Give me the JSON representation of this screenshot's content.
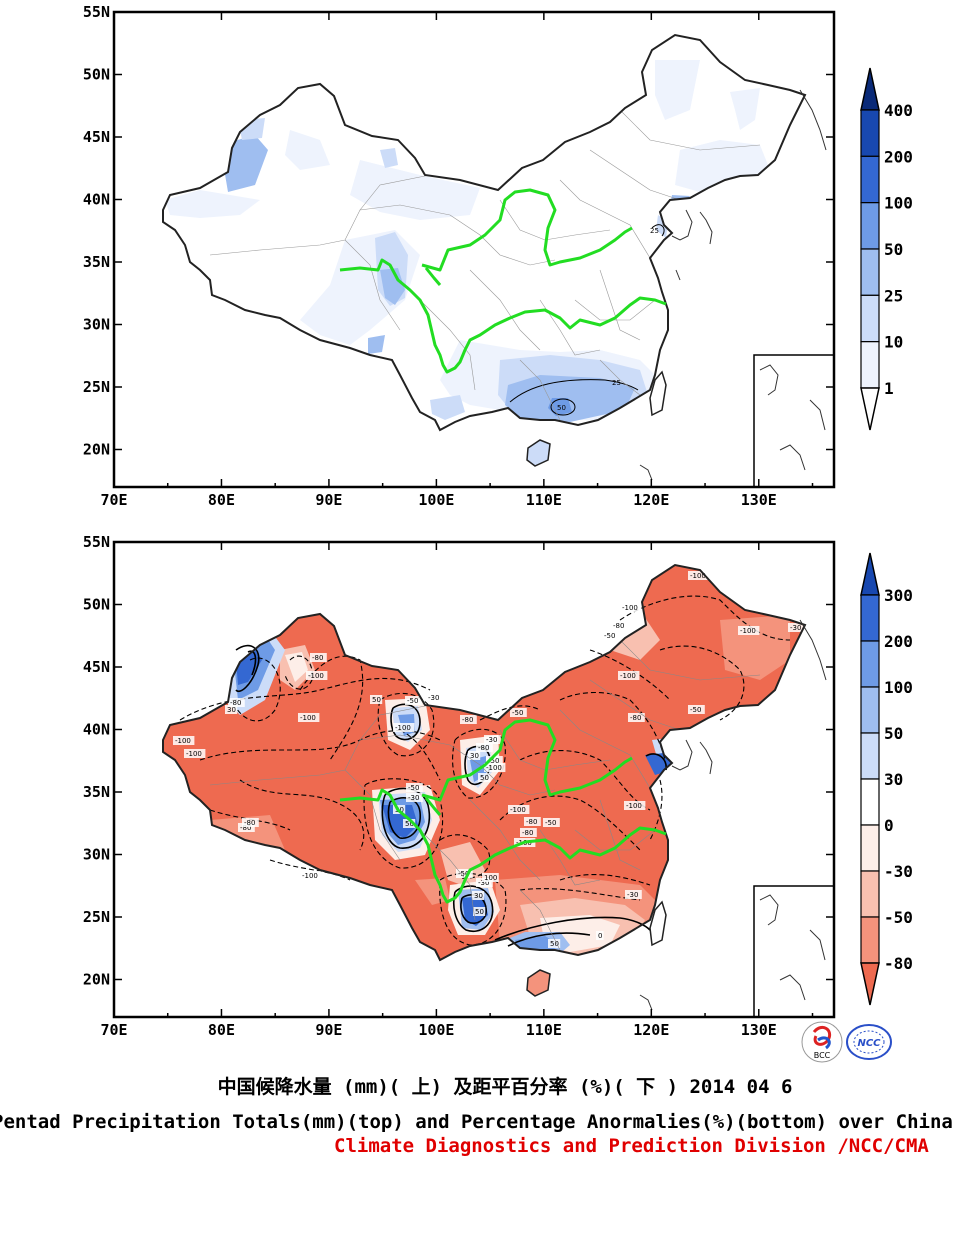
{
  "map": {
    "lat_ticks": [
      "55N",
      "50N",
      "45N",
      "40N",
      "35N",
      "30N",
      "25N",
      "20N"
    ],
    "lon_ticks": [
      "70E",
      "80E",
      "90E",
      "100E",
      "110E",
      "120E",
      "130E"
    ],
    "extent": {
      "lon": [
        70,
        137
      ],
      "lat": [
        17,
        55
      ]
    }
  },
  "top_panel": {
    "variable": "Pentad precipitation totals (mm)",
    "colorbar": [
      "1",
      "10",
      "25",
      "50",
      "100",
      "200",
      "400"
    ],
    "colors": [
      "#ffffff",
      "#eef3fd",
      "#ccdcf8",
      "#9fbef0",
      "#6e9be6",
      "#3468d2",
      "#1848b0",
      "#0a2a78"
    ],
    "contour_labels": [
      "25",
      "50",
      "25"
    ]
  },
  "bottom_panel": {
    "variable": "Precipitation percentage anomaly (%)",
    "colorbar": [
      "-80",
      "-50",
      "-30",
      "0",
      "30",
      "50",
      "100",
      "200",
      "300"
    ],
    "colors": [
      "#ee6a50",
      "#f4937c",
      "#f8c0b0",
      "#fdeee8",
      "#ffffff",
      "#ccdcf8",
      "#9fbef0",
      "#6e9be6",
      "#3468d2",
      "#1848b0"
    ],
    "contour_labels": [
      "-100",
      "-100",
      "-80",
      "-100",
      "-50",
      "-100",
      "-30",
      "-80",
      "-100",
      "-100",
      "-80",
      "30",
      "50",
      "-100",
      "-50",
      "-30",
      "-80",
      "-80",
      "-100",
      "-50",
      "-30",
      "-50",
      "30",
      "50",
      "-100",
      "-80",
      "-100",
      "-50",
      "-30",
      "30",
      "50",
      "-100",
      "-80",
      "-80",
      "-100",
      "-50",
      "-30",
      "30",
      "50",
      "100",
      "-100",
      "-80",
      "-50",
      "-30",
      "0",
      "50",
      "-80",
      "-100",
      "-50"
    ]
  },
  "logos": {
    "left": "BCC",
    "right": "NCC"
  },
  "caption": {
    "chinese": "中国候降水量 (mm)( 上) 及距平百分率 (%)( 下 ) 2014 04 6",
    "english": "Pentad Precipitation Totals(mm)(top) and Percentage Anormalies(%)(bottom) over China",
    "division": "Climate Diagnostics and Prediction Division /NCC/CMA"
  },
  "style": {
    "river_color": "#22dd22",
    "division_color": "#e00000"
  }
}
